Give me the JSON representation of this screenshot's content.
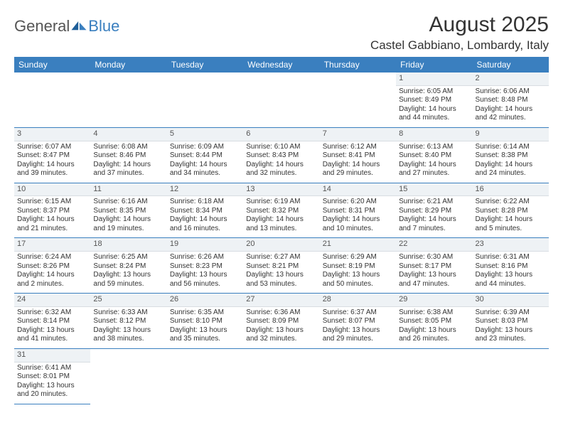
{
  "logo": {
    "part1": "General",
    "part2": "Blue"
  },
  "title": "August 2025",
  "location": "Castel Gabbiano, Lombardy, Italy",
  "colors": {
    "header_bg": "#3a7fbf",
    "header_fg": "#ffffff",
    "daynum_bg": "#eef2f5",
    "cell_border": "#3a7fbf",
    "text": "#333333"
  },
  "weekdays": [
    "Sunday",
    "Monday",
    "Tuesday",
    "Wednesday",
    "Thursday",
    "Friday",
    "Saturday"
  ],
  "weeks": [
    [
      null,
      null,
      null,
      null,
      null,
      {
        "n": "1",
        "sr": "Sunrise: 6:05 AM",
        "ss": "Sunset: 8:49 PM",
        "d1": "Daylight: 14 hours",
        "d2": "and 44 minutes."
      },
      {
        "n": "2",
        "sr": "Sunrise: 6:06 AM",
        "ss": "Sunset: 8:48 PM",
        "d1": "Daylight: 14 hours",
        "d2": "and 42 minutes."
      }
    ],
    [
      {
        "n": "3",
        "sr": "Sunrise: 6:07 AM",
        "ss": "Sunset: 8:47 PM",
        "d1": "Daylight: 14 hours",
        "d2": "and 39 minutes."
      },
      {
        "n": "4",
        "sr": "Sunrise: 6:08 AM",
        "ss": "Sunset: 8:46 PM",
        "d1": "Daylight: 14 hours",
        "d2": "and 37 minutes."
      },
      {
        "n": "5",
        "sr": "Sunrise: 6:09 AM",
        "ss": "Sunset: 8:44 PM",
        "d1": "Daylight: 14 hours",
        "d2": "and 34 minutes."
      },
      {
        "n": "6",
        "sr": "Sunrise: 6:10 AM",
        "ss": "Sunset: 8:43 PM",
        "d1": "Daylight: 14 hours",
        "d2": "and 32 minutes."
      },
      {
        "n": "7",
        "sr": "Sunrise: 6:12 AM",
        "ss": "Sunset: 8:41 PM",
        "d1": "Daylight: 14 hours",
        "d2": "and 29 minutes."
      },
      {
        "n": "8",
        "sr": "Sunrise: 6:13 AM",
        "ss": "Sunset: 8:40 PM",
        "d1": "Daylight: 14 hours",
        "d2": "and 27 minutes."
      },
      {
        "n": "9",
        "sr": "Sunrise: 6:14 AM",
        "ss": "Sunset: 8:38 PM",
        "d1": "Daylight: 14 hours",
        "d2": "and 24 minutes."
      }
    ],
    [
      {
        "n": "10",
        "sr": "Sunrise: 6:15 AM",
        "ss": "Sunset: 8:37 PM",
        "d1": "Daylight: 14 hours",
        "d2": "and 21 minutes."
      },
      {
        "n": "11",
        "sr": "Sunrise: 6:16 AM",
        "ss": "Sunset: 8:35 PM",
        "d1": "Daylight: 14 hours",
        "d2": "and 19 minutes."
      },
      {
        "n": "12",
        "sr": "Sunrise: 6:18 AM",
        "ss": "Sunset: 8:34 PM",
        "d1": "Daylight: 14 hours",
        "d2": "and 16 minutes."
      },
      {
        "n": "13",
        "sr": "Sunrise: 6:19 AM",
        "ss": "Sunset: 8:32 PM",
        "d1": "Daylight: 14 hours",
        "d2": "and 13 minutes."
      },
      {
        "n": "14",
        "sr": "Sunrise: 6:20 AM",
        "ss": "Sunset: 8:31 PM",
        "d1": "Daylight: 14 hours",
        "d2": "and 10 minutes."
      },
      {
        "n": "15",
        "sr": "Sunrise: 6:21 AM",
        "ss": "Sunset: 8:29 PM",
        "d1": "Daylight: 14 hours",
        "d2": "and 7 minutes."
      },
      {
        "n": "16",
        "sr": "Sunrise: 6:22 AM",
        "ss": "Sunset: 8:28 PM",
        "d1": "Daylight: 14 hours",
        "d2": "and 5 minutes."
      }
    ],
    [
      {
        "n": "17",
        "sr": "Sunrise: 6:24 AM",
        "ss": "Sunset: 8:26 PM",
        "d1": "Daylight: 14 hours",
        "d2": "and 2 minutes."
      },
      {
        "n": "18",
        "sr": "Sunrise: 6:25 AM",
        "ss": "Sunset: 8:24 PM",
        "d1": "Daylight: 13 hours",
        "d2": "and 59 minutes."
      },
      {
        "n": "19",
        "sr": "Sunrise: 6:26 AM",
        "ss": "Sunset: 8:23 PM",
        "d1": "Daylight: 13 hours",
        "d2": "and 56 minutes."
      },
      {
        "n": "20",
        "sr": "Sunrise: 6:27 AM",
        "ss": "Sunset: 8:21 PM",
        "d1": "Daylight: 13 hours",
        "d2": "and 53 minutes."
      },
      {
        "n": "21",
        "sr": "Sunrise: 6:29 AM",
        "ss": "Sunset: 8:19 PM",
        "d1": "Daylight: 13 hours",
        "d2": "and 50 minutes."
      },
      {
        "n": "22",
        "sr": "Sunrise: 6:30 AM",
        "ss": "Sunset: 8:17 PM",
        "d1": "Daylight: 13 hours",
        "d2": "and 47 minutes."
      },
      {
        "n": "23",
        "sr": "Sunrise: 6:31 AM",
        "ss": "Sunset: 8:16 PM",
        "d1": "Daylight: 13 hours",
        "d2": "and 44 minutes."
      }
    ],
    [
      {
        "n": "24",
        "sr": "Sunrise: 6:32 AM",
        "ss": "Sunset: 8:14 PM",
        "d1": "Daylight: 13 hours",
        "d2": "and 41 minutes."
      },
      {
        "n": "25",
        "sr": "Sunrise: 6:33 AM",
        "ss": "Sunset: 8:12 PM",
        "d1": "Daylight: 13 hours",
        "d2": "and 38 minutes."
      },
      {
        "n": "26",
        "sr": "Sunrise: 6:35 AM",
        "ss": "Sunset: 8:10 PM",
        "d1": "Daylight: 13 hours",
        "d2": "and 35 minutes."
      },
      {
        "n": "27",
        "sr": "Sunrise: 6:36 AM",
        "ss": "Sunset: 8:09 PM",
        "d1": "Daylight: 13 hours",
        "d2": "and 32 minutes."
      },
      {
        "n": "28",
        "sr": "Sunrise: 6:37 AM",
        "ss": "Sunset: 8:07 PM",
        "d1": "Daylight: 13 hours",
        "d2": "and 29 minutes."
      },
      {
        "n": "29",
        "sr": "Sunrise: 6:38 AM",
        "ss": "Sunset: 8:05 PM",
        "d1": "Daylight: 13 hours",
        "d2": "and 26 minutes."
      },
      {
        "n": "30",
        "sr": "Sunrise: 6:39 AM",
        "ss": "Sunset: 8:03 PM",
        "d1": "Daylight: 13 hours",
        "d2": "and 23 minutes."
      }
    ],
    [
      {
        "n": "31",
        "sr": "Sunrise: 6:41 AM",
        "ss": "Sunset: 8:01 PM",
        "d1": "Daylight: 13 hours",
        "d2": "and 20 minutes."
      },
      null,
      null,
      null,
      null,
      null,
      null
    ]
  ]
}
